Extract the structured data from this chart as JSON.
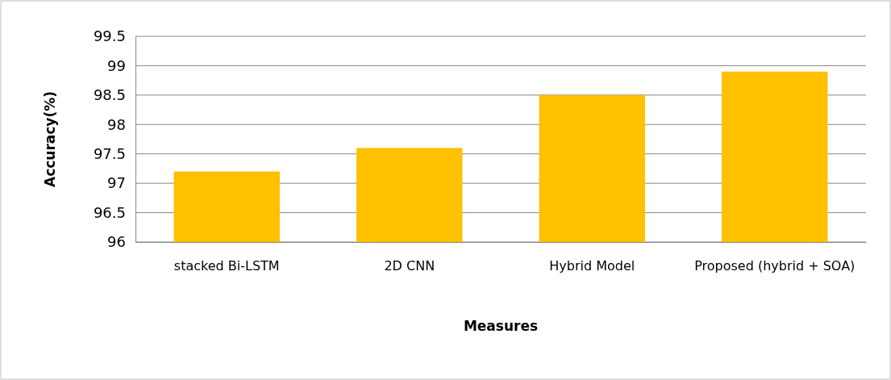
{
  "chart_data": {
    "type": "bar",
    "xlabel": "Measures",
    "ylabel": "Accuracy(%)",
    "categories": [
      "stacked Bi-LSTM",
      "2D CNN",
      "Hybrid Model",
      "Proposed (hybrid + SOA)"
    ],
    "values": [
      97.2,
      97.6,
      98.5,
      98.9
    ],
    "color": "#ffc000",
    "ylim": [
      96,
      99.5
    ],
    "yticks": [
      96,
      96.5,
      97,
      97.5,
      98,
      98.5,
      99,
      99.5
    ],
    "grid": "y"
  }
}
